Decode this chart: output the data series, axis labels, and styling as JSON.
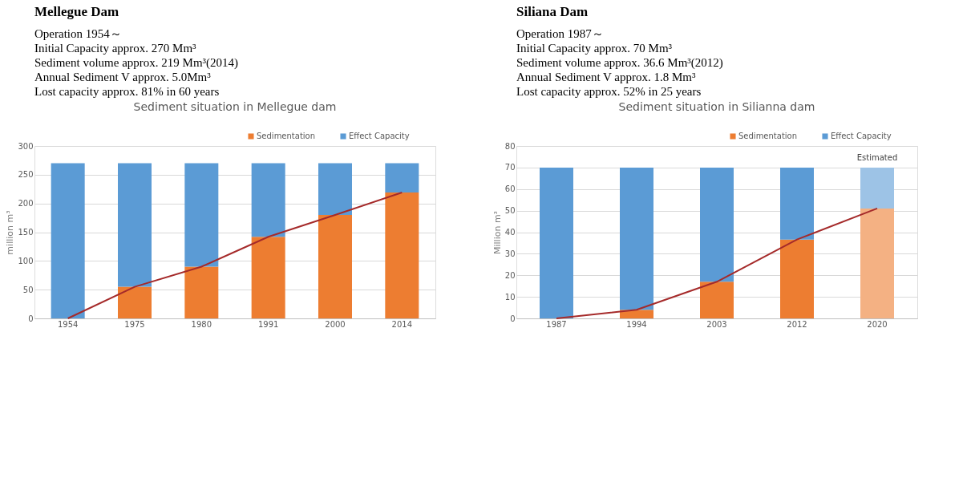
{
  "chart_data": [
    {
      "type": "bar",
      "title": "Mellegue Dam",
      "subtitle": "Sediment situation in Mellegue dam",
      "ylabel": "million m³",
      "annotations": [
        "Operation 1954～",
        "Initial Capacity    approx. 270 Mm³",
        "Sediment volume approx. 219 Mm³(2014)",
        "Annual Sediment V approx. 5.0Mm³",
        "Lost capacity        approx. 81% in 60 years"
      ],
      "categories": [
        "1954",
        "1975",
        "1980",
        "1991",
        "2000",
        "2014"
      ],
      "stacked": true,
      "series": [
        {
          "name": "Sedimentation",
          "color": "#ed7d31",
          "values": [
            0,
            55,
            90,
            142,
            180,
            219
          ]
        },
        {
          "name": "Effect Capacity",
          "color": "#5b9bd5",
          "values": [
            270,
            215,
            180,
            128,
            90,
            51
          ]
        },
        {
          "type": "line",
          "color": "#a52a2a",
          "values": [
            0,
            55,
            90,
            142,
            180,
            219
          ]
        }
      ],
      "ylim": [
        0,
        300
      ],
      "yticks": [
        0,
        50,
        100,
        150,
        200,
        250,
        300
      ],
      "grid": "y",
      "legend": "top right",
      "marker": "none",
      "line_style": "solid"
    },
    {
      "type": "bar",
      "title": "Siliana Dam",
      "subtitle": "Sediment situation in Silianna dam",
      "ylabel": "Million m³",
      "annotations": [
        "Operation 1987～",
        "Initial Capacity    approx. 70 Mm³",
        "Sediment volume approx. 36.6 Mm³(2012)",
        "Annual Sediment V approx. 1.8 Mm³",
        "Lost capacity        approx. 52% in 25 years",
        {
          "text": "Estimated",
          "x": "2020",
          "y": 70
        }
      ],
      "categories": [
        "1987",
        "1994",
        "2003",
        "2012",
        "2020"
      ],
      "stacked": true,
      "series": [
        {
          "name": "Sedimentation",
          "color": "#ed7d31",
          "colors": [
            "#ed7d31",
            "#ed7d31",
            "#ed7d31",
            "#ed7d31",
            "#f4b183"
          ],
          "values": [
            0,
            4,
            17,
            36.6,
            51
          ]
        },
        {
          "name": "Effect Capacity",
          "color": "#5b9bd5",
          "colors": [
            "#5b9bd5",
            "#5b9bd5",
            "#5b9bd5",
            "#5b9bd5",
            "#9dc3e6"
          ],
          "values": [
            70,
            66,
            53,
            33.4,
            19
          ]
        },
        {
          "type": "line",
          "color": "#a52a2a",
          "values": [
            0,
            4,
            17,
            36.6,
            51
          ]
        }
      ],
      "ylim": [
        0,
        80
      ],
      "yticks": [
        0,
        10,
        20,
        30,
        40,
        50,
        60,
        70,
        80
      ],
      "grid": "y",
      "legend": "top right",
      "marker": "none",
      "line_style": "solid"
    }
  ]
}
